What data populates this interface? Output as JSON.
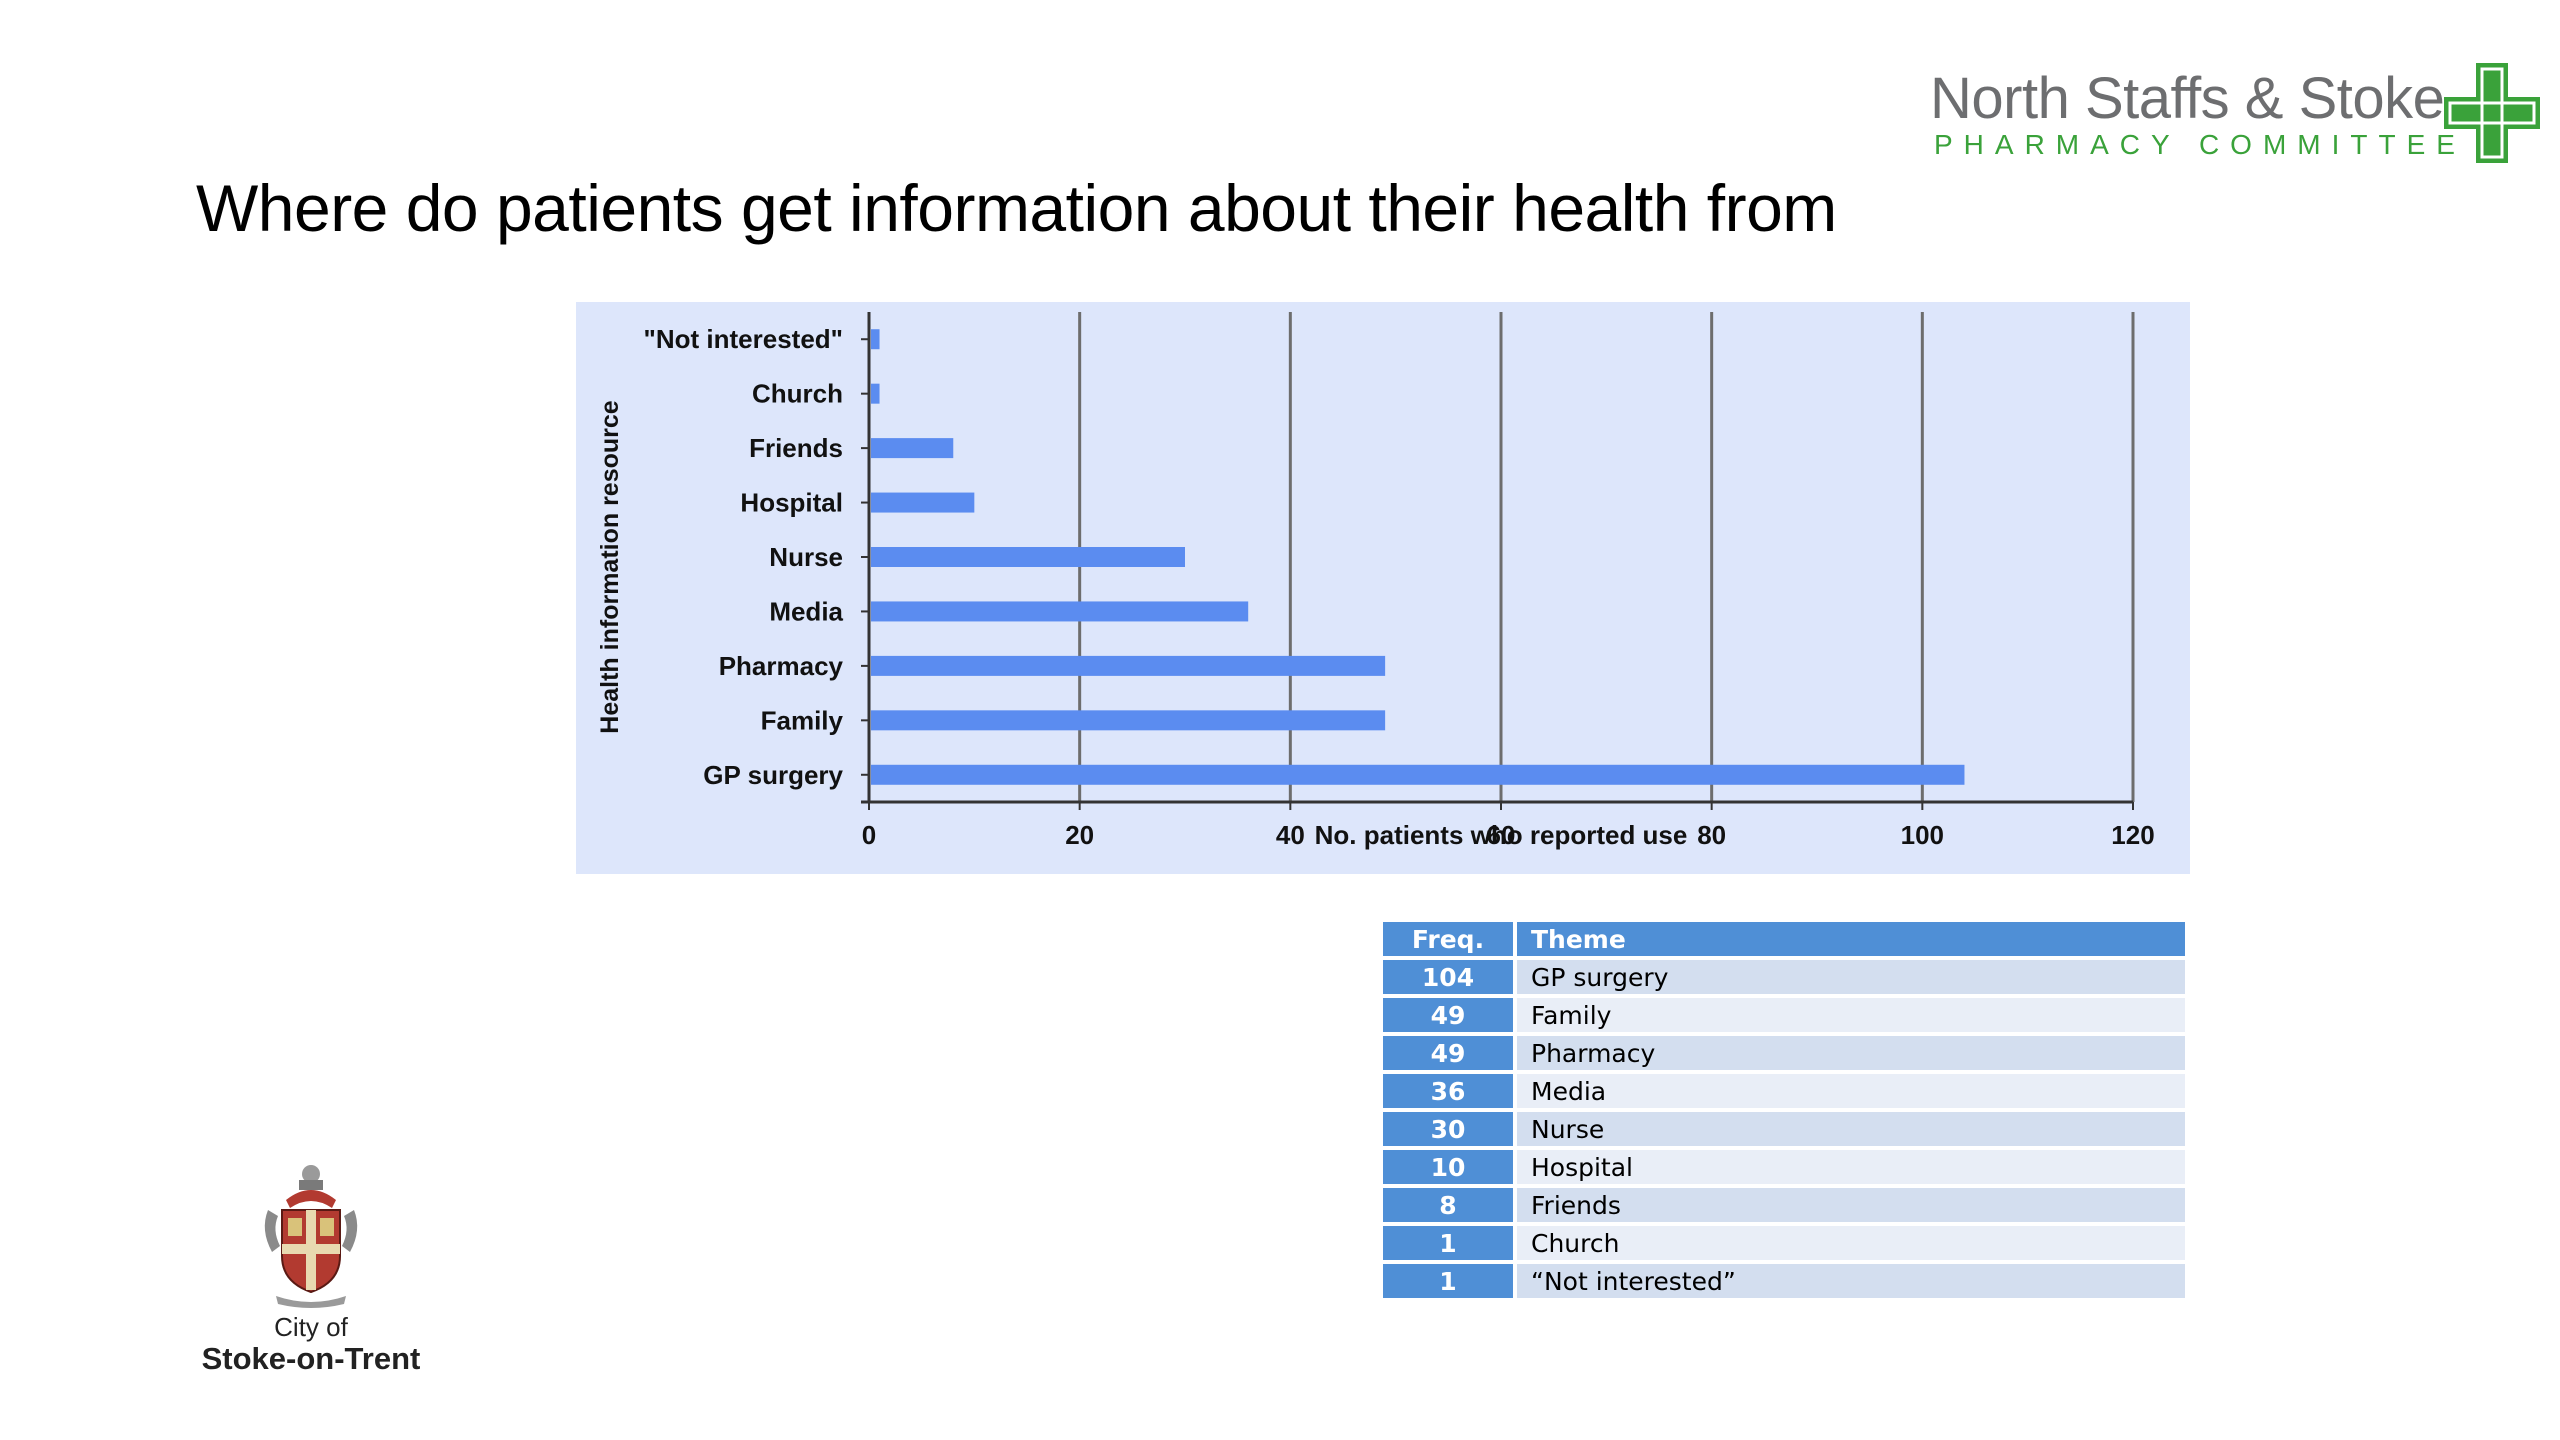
{
  "slide": {
    "title": "Where do patients get information about their health from"
  },
  "logo": {
    "line1": "North Staffs & Stoke",
    "line2": "PHARMACY COMMITTEE",
    "cross_color": "#3aa23a"
  },
  "crest": {
    "line1": "City of",
    "line2": "Stoke-on-Trent"
  },
  "chart_data": {
    "type": "bar",
    "orientation": "horizontal",
    "categories": [
      "GP surgery",
      "Family",
      "Pharmacy",
      "Media",
      "Nurse",
      "Hospital",
      "Friends",
      "Church",
      "\"Not interested\""
    ],
    "values": [
      104,
      49,
      49,
      36,
      30,
      10,
      8,
      1,
      1
    ],
    "xlabel": "No. patients who reported use",
    "ylabel": "Health information resource",
    "xlim": [
      0,
      120
    ],
    "xticks": [
      "0",
      "20",
      "40",
      "60",
      "80",
      "100",
      "120"
    ],
    "grid": true,
    "bar_color": "#5b8cf0",
    "background": "#dde6fb"
  },
  "table": {
    "headers": [
      "Freq.",
      "Theme"
    ],
    "rows": [
      [
        "104",
        "GP surgery"
      ],
      [
        "49",
        "Family"
      ],
      [
        "49",
        "Pharmacy"
      ],
      [
        "36",
        "Media"
      ],
      [
        "30",
        "Nurse"
      ],
      [
        "10",
        "Hospital"
      ],
      [
        "8",
        "Friends"
      ],
      [
        "1",
        "Church"
      ],
      [
        "1",
        "“Not interested”"
      ]
    ]
  }
}
